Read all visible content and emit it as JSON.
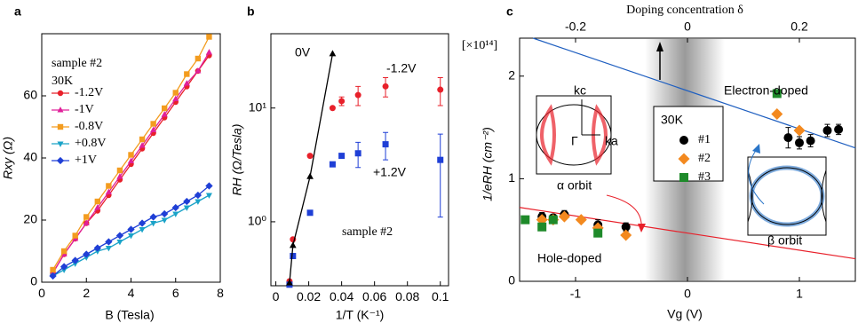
{
  "chart_data": [
    {
      "type": "line",
      "panel_label": "a",
      "x_label": "B (Tesla)",
      "y_label": "Rxy (Ω)",
      "annotations": [
        "sample #2",
        "30K"
      ],
      "legend": true,
      "x": [
        0.5,
        1,
        1.5,
        2,
        2.5,
        3,
        3.5,
        4,
        4.5,
        5,
        5.5,
        6,
        6.5,
        7,
        7.5
      ],
      "series": [
        {
          "name": "-1.2V",
          "color": "#e8202a",
          "marker": "circle",
          "values": [
            3,
            9,
            14,
            19,
            23,
            28,
            33,
            38,
            43,
            48,
            53,
            58,
            63,
            68,
            73
          ]
        },
        {
          "name": "-1V",
          "color": "#e0209a",
          "marker": "triangle",
          "values": [
            3,
            9,
            14,
            19,
            24,
            29,
            34,
            39,
            44,
            49,
            54,
            59,
            64,
            68,
            74
          ]
        },
        {
          "name": "-0.8V",
          "color": "#f39c1f",
          "marker": "square",
          "values": [
            4,
            10,
            15,
            21,
            26,
            31,
            36,
            41,
            46,
            51,
            56,
            61,
            67,
            72,
            79
          ]
        },
        {
          "name": "+0.8V",
          "color": "#1aa3c8",
          "marker": "tri-down",
          "values": [
            2,
            4,
            6,
            8,
            10,
            11,
            13,
            15,
            17,
            19,
            20,
            22,
            24,
            26,
            28
          ]
        },
        {
          "name": "+1V",
          "color": "#1f3fd6",
          "marker": "diamond",
          "values": [
            2,
            5,
            7,
            9,
            11,
            13,
            15,
            17,
            19,
            21,
            22,
            24,
            26,
            28,
            31
          ]
        }
      ],
      "xlim": [
        0,
        8
      ],
      "ylim": [
        0,
        80
      ],
      "xticks": [
        0,
        2,
        4,
        6,
        8
      ],
      "yticks": [
        0,
        20,
        40,
        60
      ]
    },
    {
      "type": "scatter",
      "panel_label": "b",
      "x_label": "1/T (K⁻¹)",
      "y_label": "RH (Ω/Tesla)",
      "annotations": [
        "sample #2"
      ],
      "log_y": true,
      "legend": false,
      "series": [
        {
          "name": "-1.2V",
          "color": "#e8202a",
          "marker": "circle",
          "x": [
            0.0083,
            0.0104,
            0.0208,
            0.0345,
            0.04,
            0.05,
            0.0667,
            0.1
          ],
          "values": [
            0.3,
            0.7,
            3.8,
            10,
            11.5,
            13,
            15.5,
            14.5
          ],
          "errors": [
            null,
            null,
            null,
            null,
            1,
            2.5,
            3,
            4
          ]
        },
        {
          "name": "+1.2V",
          "color": "#1f3fd6",
          "marker": "square",
          "x": [
            0.0083,
            0.0104,
            0.0208,
            0.0345,
            0.04,
            0.05,
            0.0667,
            0.1
          ],
          "values": [
            0.28,
            0.5,
            1.2,
            3.2,
            3.8,
            4,
            4.8,
            3.5
          ],
          "errors": [
            null,
            null,
            null,
            null,
            null,
            1,
            1.3,
            2.4
          ]
        },
        {
          "name": "0V",
          "color": "#000000",
          "marker": "triangle",
          "line": true,
          "x": [
            0.0083,
            0.0104,
            0.0208,
            0.0345
          ],
          "values": [
            0.29,
            0.62,
            2.5,
            30
          ]
        }
      ],
      "xlim": [
        -0.003,
        0.105
      ],
      "ylim": [
        0.274,
        45
      ],
      "xticks": [
        0,
        0.02,
        0.04,
        0.06,
        0.08,
        0.1
      ],
      "yticks": [
        {
          "value": 1,
          "label": "10⁰"
        },
        {
          "value": 10,
          "label": "10¹"
        }
      ]
    },
    {
      "type": "scatter",
      "panel_label": "c",
      "x_label": "Vg (V)",
      "y_label": "1/eRH (cm⁻²)",
      "y_unit": "[×10¹⁴]",
      "x2_label": "Doping concentration δ",
      "x2lim": [
        -0.3,
        0.3
      ],
      "x2ticks": [
        -0.2,
        0,
        0.2
      ],
      "legend": true,
      "legend_title": "30K",
      "annotations": [
        "Electron-doped",
        "Hole-doped",
        "α orbit",
        "β orbit",
        "kc",
        "ka",
        "Γ"
      ],
      "trend_lines": [
        {
          "color": "#e8202a",
          "x": [
            -1.5,
            1.5
          ],
          "y": [
            0.72,
            0.22
          ]
        },
        {
          "color": "#1f5fc0",
          "x": [
            -1.38,
            1.5
          ],
          "y": [
            2.37,
            1.3
          ]
        }
      ],
      "series": [
        {
          "name": "#1",
          "color": "#000000",
          "marker": "circle",
          "x": [
            -1.3,
            -1.2,
            -1.1,
            -0.8,
            -0.55,
            0.9,
            1.0,
            1.1,
            1.25,
            1.35
          ],
          "values": [
            0.63,
            0.62,
            0.65,
            0.55,
            0.53,
            1.4,
            1.35,
            1.37,
            1.47,
            1.48
          ],
          "errors": [
            0.04,
            0.03,
            0.04,
            0.05,
            0.04,
            0.1,
            0.06,
            0.06,
            0.06,
            0.05
          ]
        },
        {
          "name": "#2",
          "color": "#f3891f",
          "marker": "diamond",
          "x": [
            -1.3,
            -1.2,
            -1.1,
            -0.95,
            -0.8,
            -0.55,
            0.8,
            1.0
          ],
          "values": [
            0.6,
            0.6,
            0.63,
            0.6,
            0.52,
            0.45,
            1.63,
            1.47
          ]
        },
        {
          "name": "#3",
          "color": "#1e8a2a",
          "marker": "square",
          "x": [
            -1.45,
            -1.3,
            -1.2,
            -0.8,
            0.8
          ],
          "values": [
            0.6,
            0.53,
            0.6,
            0.47,
            1.83
          ]
        }
      ],
      "xlim": [
        -1.5,
        1.5
      ],
      "ylim": [
        0,
        2.37
      ],
      "xticks": [
        -1,
        0,
        1
      ],
      "yticks": [
        0,
        1,
        2
      ]
    }
  ]
}
